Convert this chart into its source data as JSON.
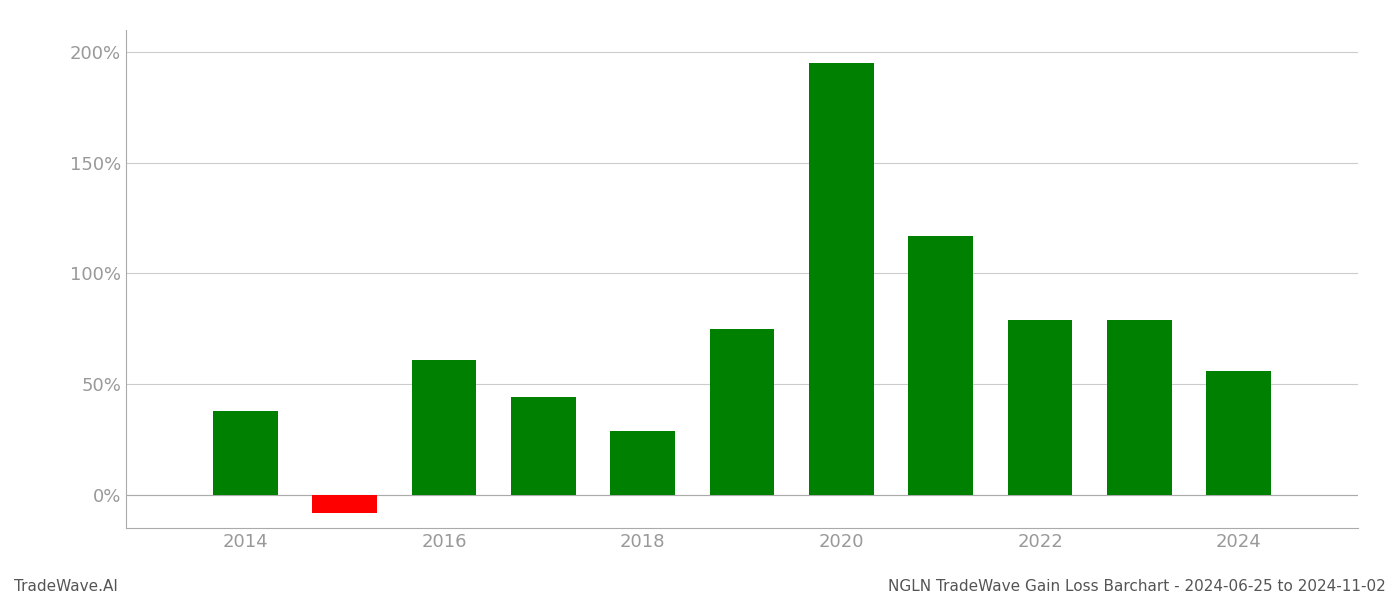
{
  "years": [
    2014,
    2015,
    2016,
    2017,
    2018,
    2019,
    2020,
    2021,
    2022,
    2023,
    2024
  ],
  "values": [
    38,
    -8,
    61,
    44,
    29,
    75,
    195,
    117,
    79,
    79,
    56
  ],
  "colors": [
    "#008000",
    "#ff0000",
    "#008000",
    "#008000",
    "#008000",
    "#008000",
    "#008000",
    "#008000",
    "#008000",
    "#008000",
    "#008000"
  ],
  "ylim": [
    -15,
    210
  ],
  "yticks": [
    0,
    50,
    100,
    150,
    200
  ],
  "ytick_labels": [
    "0%",
    "50%",
    "100%",
    "150%",
    "200%"
  ],
  "bg_color": "#ffffff",
  "grid_color": "#cccccc",
  "bar_width": 0.65,
  "xtick_labels": [
    "2014",
    "2016",
    "2018",
    "2020",
    "2022",
    "2024"
  ],
  "xtick_positions": [
    2014,
    2016,
    2018,
    2020,
    2022,
    2024
  ],
  "footer_left": "TradeWave.AI",
  "footer_right": "NGLN TradeWave Gain Loss Barchart - 2024-06-25 to 2024-11-02",
  "tick_color": "#999999",
  "tick_fontsize": 13,
  "footer_fontsize": 11,
  "xlim_left": 2012.8,
  "xlim_right": 2025.2
}
